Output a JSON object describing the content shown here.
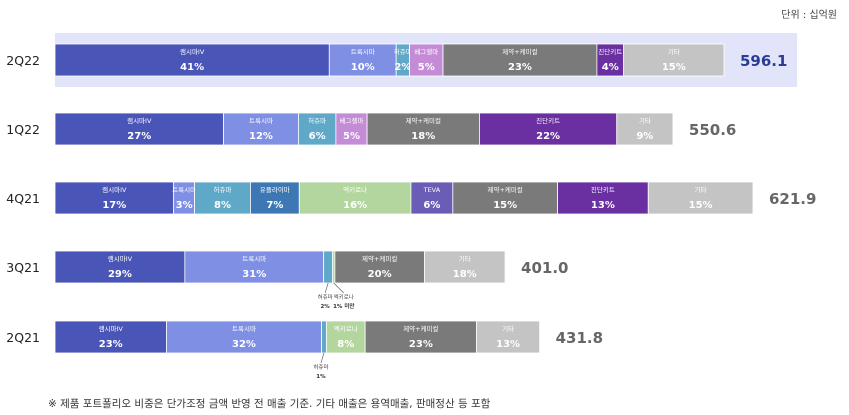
{
  "unit_label": "단위 : 십억원",
  "footnote": "※ 제품 포트폴리오 비중은 단가조정 금액 반영 전 매출 기준. 기타 매출은 용역매출, 판매정산 등 포함",
  "colors": {
    "램시마IV": "#4a55b8",
    "트룩시마": "#7f8fe3",
    "허쥬마": "#5fa8c8",
    "베그젤마": "#c48cd6",
    "유플라이마": "#3d78b5",
    "엑키로나": "#b3d69e",
    "TEVA": "#6a5db5",
    "제약+케미컬": "#7a7a7a",
    "진단키트": "#6a2fa0",
    "기타": "#c4c4c4",
    "highlight_band": "#e2e5fa"
  },
  "chart_data": {
    "type": "bar",
    "orientation": "horizontal-stacked",
    "categories": [
      "2Q22",
      "1Q22",
      "4Q21",
      "3Q21",
      "2Q21"
    ],
    "totals": [
      "596.1",
      "550.6",
      "621.9",
      "401.0",
      "431.8"
    ],
    "highlighted_category": "2Q22",
    "bars": [
      {
        "category": "2Q22",
        "segments": [
          {
            "name": "램시마IV",
            "pct": 41,
            "label": "41%"
          },
          {
            "name": "트룩시마",
            "pct": 10,
            "label": "10%"
          },
          {
            "name": "허쥬마",
            "pct": 2,
            "label": "2%"
          },
          {
            "name": "베그젤마",
            "pct": 5,
            "label": "5%"
          },
          {
            "name": "제약+케미컬",
            "pct": 23,
            "label": "23%"
          },
          {
            "name": "진단키트",
            "pct": 4,
            "label": "4%"
          },
          {
            "name": "기타",
            "pct": 15,
            "label": "15%"
          }
        ]
      },
      {
        "category": "1Q22",
        "segments": [
          {
            "name": "램시마IV",
            "pct": 27,
            "label": "27%"
          },
          {
            "name": "트룩시마",
            "pct": 12,
            "label": "12%"
          },
          {
            "name": "허쥬마",
            "pct": 6,
            "label": "6%"
          },
          {
            "name": "베그젤마",
            "pct": 5,
            "label": "5%"
          },
          {
            "name": "제약+케미컬",
            "pct": 18,
            "label": "18%"
          },
          {
            "name": "진단키트",
            "pct": 22,
            "label": "22%"
          },
          {
            "name": "기타",
            "pct": 9,
            "label": "9%"
          }
        ]
      },
      {
        "category": "4Q21",
        "segments": [
          {
            "name": "램시마IV",
            "pct": 17,
            "label": "17%"
          },
          {
            "name": "트룩시마",
            "pct": 3,
            "label": "3%"
          },
          {
            "name": "허쥬마",
            "pct": 8,
            "label": "8%"
          },
          {
            "name": "유플라이마",
            "pct": 7,
            "label": "7%"
          },
          {
            "name": "엑키로나",
            "pct": 16,
            "label": "16%"
          },
          {
            "name": "TEVA",
            "pct": 6,
            "label": "6%"
          },
          {
            "name": "제약+케미컬",
            "pct": 15,
            "label": "15%"
          },
          {
            "name": "진단키트",
            "pct": 13,
            "label": "13%"
          },
          {
            "name": "기타",
            "pct": 15,
            "label": "15%"
          }
        ]
      },
      {
        "category": "3Q21",
        "segments": [
          {
            "name": "램시마IV",
            "pct": 29,
            "label": "29%"
          },
          {
            "name": "트룩시마",
            "pct": 31,
            "label": "31%"
          },
          {
            "name": "허쥬마",
            "pct": 2,
            "label": "2%",
            "callout": true
          },
          {
            "name": "엑키로나",
            "pct": 0.5,
            "label": "1% 미만",
            "callout": true
          },
          {
            "name": "제약+케미컬",
            "pct": 20,
            "label": "20%"
          },
          {
            "name": "기타",
            "pct": 18,
            "label": "18%"
          }
        ]
      },
      {
        "category": "2Q21",
        "segments": [
          {
            "name": "램시마IV",
            "pct": 23,
            "label": "23%"
          },
          {
            "name": "트룩시마",
            "pct": 32,
            "label": "32%"
          },
          {
            "name": "허쥬마",
            "pct": 1,
            "label": "1%",
            "callout": true
          },
          {
            "name": "엑키로나",
            "pct": 8,
            "label": "8%"
          },
          {
            "name": "제약+케미컬",
            "pct": 23,
            "label": "23%"
          },
          {
            "name": "기타",
            "pct": 13,
            "label": "13%"
          }
        ]
      }
    ]
  }
}
